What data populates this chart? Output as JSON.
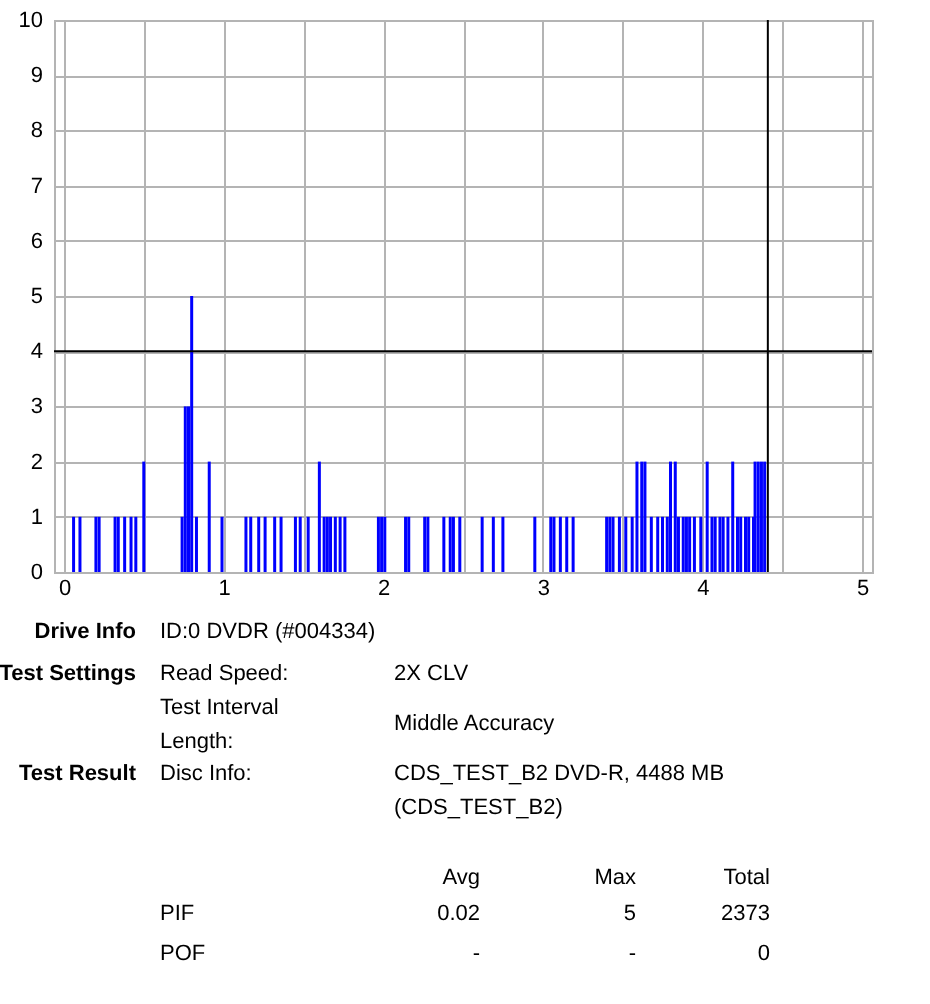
{
  "chart_data": {
    "type": "bar",
    "color": "#0000ff",
    "x": [
      0.06,
      0.1,
      0.2,
      0.22,
      0.32,
      0.34,
      0.38,
      0.42,
      0.45,
      0.5,
      0.74,
      0.76,
      0.78,
      0.8,
      0.83,
      0.91,
      0.99,
      1.14,
      1.17,
      1.22,
      1.26,
      1.32,
      1.36,
      1.45,
      1.48,
      1.53,
      1.6,
      1.63,
      1.65,
      1.67,
      1.7,
      1.73,
      1.76,
      1.97,
      1.99,
      2.01,
      2.14,
      2.16,
      2.26,
      2.28,
      2.38,
      2.42,
      2.44,
      2.48,
      2.62,
      2.69,
      2.75,
      2.95,
      3.05,
      3.07,
      3.11,
      3.15,
      3.19,
      3.4,
      3.42,
      3.44,
      3.48,
      3.52,
      3.56,
      3.59,
      3.62,
      3.64,
      3.68,
      3.72,
      3.75,
      3.78,
      3.8,
      3.83,
      3.85,
      3.88,
      3.9,
      3.92,
      3.95,
      3.99,
      4.03,
      4.06,
      4.08,
      4.11,
      4.13,
      4.16,
      4.19,
      4.22,
      4.24,
      4.27,
      4.29,
      4.32,
      4.33,
      4.35,
      4.37,
      4.39
    ],
    "values": [
      1,
      1,
      1,
      1,
      1,
      1,
      1,
      1,
      1,
      2,
      1,
      3,
      3,
      5,
      1,
      2,
      1,
      1,
      1,
      1,
      1,
      1,
      1,
      1,
      1,
      1,
      2,
      1,
      1,
      1,
      1,
      1,
      1,
      1,
      1,
      1,
      1,
      1,
      1,
      1,
      1,
      1,
      1,
      1,
      1,
      1,
      1,
      1,
      1,
      1,
      1,
      1,
      1,
      1,
      1,
      1,
      1,
      1,
      1,
      2,
      2,
      2,
      1,
      1,
      1,
      1,
      2,
      2,
      1,
      1,
      1,
      1,
      1,
      1,
      2,
      1,
      1,
      1,
      1,
      1,
      2,
      1,
      1,
      1,
      1,
      1,
      2,
      2,
      2,
      2
    ],
    "xlim": [
      0,
      5
    ],
    "xticks": [
      0,
      {
        "value": 0.5,
        "label": null
      },
      1,
      {
        "value": 1.5,
        "label": null
      },
      2,
      {
        "value": 2.5,
        "label": null
      },
      3,
      {
        "value": 3.5,
        "label": null
      },
      4,
      {
        "value": 4.5,
        "label": null
      },
      5
    ],
    "ylim": [
      0,
      10
    ],
    "yticks": [
      0,
      1,
      2,
      3,
      4,
      5,
      6,
      7,
      8,
      9,
      10
    ],
    "grid": true,
    "ref_lines": [
      {
        "axis": "y",
        "value": 4,
        "color": "#000000"
      },
      {
        "axis": "x",
        "value": 4.41,
        "color": "#000000"
      }
    ],
    "annotations": [
      "Drive Info",
      "ID:0 DVDR (#004334)",
      "Test Settings",
      "Read Speed:",
      "2X CLV",
      "Test Interval",
      "Length:",
      "Middle Accuracy",
      "Test Result",
      "Disc Info:",
      "CDS_TEST_B2 DVD-R, 4488 MB",
      "(CDS_TEST_B2)",
      "Avg",
      "Max",
      "Total",
      "PIF",
      "0.02",
      "5",
      "2373",
      "POF",
      "-",
      "-",
      "0"
    ]
  }
}
